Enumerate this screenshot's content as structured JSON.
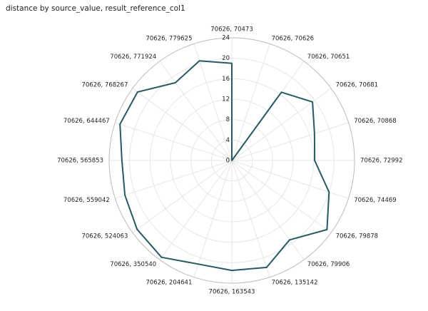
{
  "chart_data": {
    "type": "radar",
    "title": "distance by source_value, result_reference_col1",
    "categories": [
      "70626, 70473",
      "70626, 70626",
      "70626, 70651",
      "70626, 70681",
      "70626, 70868",
      "70626, 72992",
      "70626, 74469",
      "70626, 79878",
      "70626, 79906",
      "70626, 135142",
      "70626, 163543",
      "70626, 204641",
      "70626, 350540",
      "70626, 524063",
      "70626, 559042",
      "70626, 565853",
      "70626, 644467",
      "70626, 768267",
      "70626, 771924",
      "70626, 779625"
    ],
    "values": [
      19,
      0,
      16.5,
      19.5,
      17,
      16.2,
      20,
      23,
      19.2,
      22,
      21.5,
      21.3,
      23.4,
      22.9,
      22,
      21.5,
      23,
      22.8,
      18.8,
      20.5
    ],
    "color": "#275a63",
    "ylim": [
      0,
      24
    ],
    "yticks": [
      0,
      4,
      8,
      12,
      16,
      20,
      24
    ],
    "grid": true
  }
}
